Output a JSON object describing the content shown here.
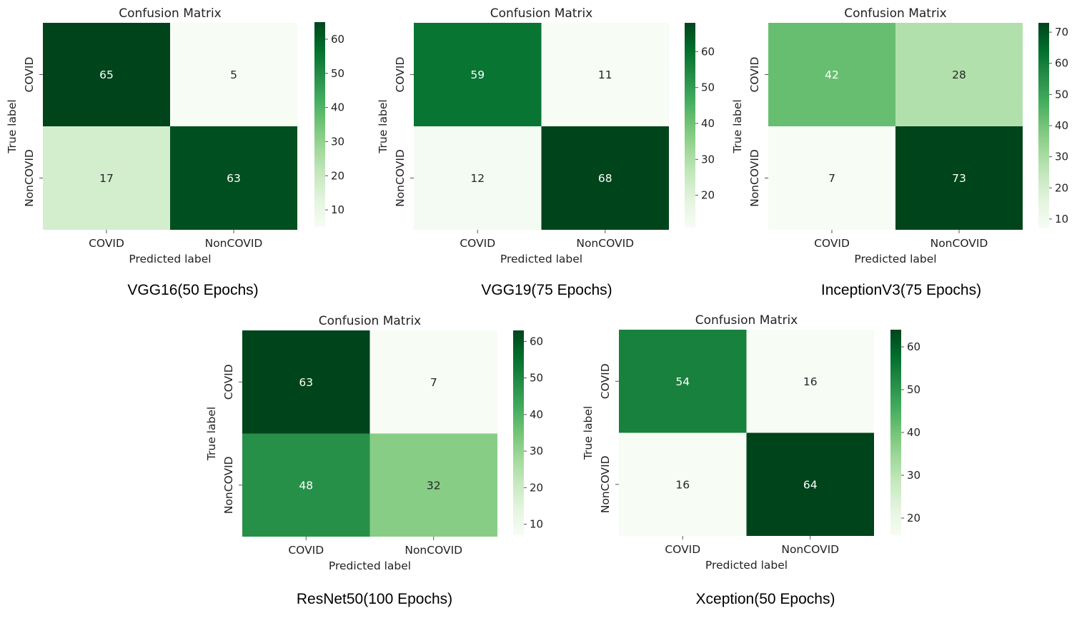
{
  "chart_data": [
    {
      "type": "heatmap",
      "title": "Confusion Matrix",
      "caption": "VGG16(50 Epochs)",
      "xlabel": "Predicted label",
      "ylabel": "True label",
      "x_categories": [
        "COVID",
        "NonCOVID"
      ],
      "y_categories": [
        "COVID",
        "NonCOVID"
      ],
      "values": [
        [
          65,
          5
        ],
        [
          17,
          63
        ]
      ],
      "colorbar": {
        "ticks": [
          10,
          20,
          30,
          40,
          50,
          60
        ],
        "range": [
          5,
          65
        ]
      }
    },
    {
      "type": "heatmap",
      "title": "Confusion Matrix",
      "caption": "VGG19(75 Epochs)",
      "xlabel": "Predicted label",
      "ylabel": "True label",
      "x_categories": [
        "COVID",
        "NonCOVID"
      ],
      "y_categories": [
        "COVID",
        "NonCOVID"
      ],
      "values": [
        [
          59,
          11
        ],
        [
          12,
          68
        ]
      ],
      "colorbar": {
        "ticks": [
          20,
          30,
          40,
          50,
          60
        ],
        "range": [
          11,
          68
        ]
      }
    },
    {
      "type": "heatmap",
      "title": "Confusion Matrix",
      "caption": "InceptionV3(75 Epochs)",
      "xlabel": "Predicted label",
      "ylabel": "True label",
      "x_categories": [
        "COVID",
        "NonCOVID"
      ],
      "y_categories": [
        "COVID",
        "NonCOVID"
      ],
      "values": [
        [
          42,
          28
        ],
        [
          7,
          73
        ]
      ],
      "colorbar": {
        "ticks": [
          10,
          20,
          30,
          40,
          50,
          60,
          70
        ],
        "range": [
          7,
          73
        ]
      }
    },
    {
      "type": "heatmap",
      "title": "Confusion Matrix",
      "caption": "ResNet50(100 Epochs)",
      "xlabel": "Predicted label",
      "ylabel": "True label",
      "x_categories": [
        "COVID",
        "NonCOVID"
      ],
      "y_categories": [
        "COVID",
        "NonCOVID"
      ],
      "values": [
        [
          63,
          7
        ],
        [
          48,
          32
        ]
      ],
      "colorbar": {
        "ticks": [
          10,
          20,
          30,
          40,
          50,
          60
        ],
        "range": [
          7,
          63
        ]
      }
    },
    {
      "type": "heatmap",
      "title": "Confusion Matrix",
      "caption": "Xception(50 Epochs)",
      "xlabel": "Predicted label",
      "ylabel": "True label",
      "x_categories": [
        "COVID",
        "NonCOVID"
      ],
      "y_categories": [
        "COVID",
        "NonCOVID"
      ],
      "values": [
        [
          54,
          16
        ],
        [
          16,
          64
        ]
      ],
      "colorbar": {
        "ticks": [
          20,
          30,
          40,
          50,
          60
        ],
        "range": [
          16,
          64
        ]
      }
    }
  ],
  "colormap": {
    "name": "Greens",
    "low": "#f7fcf5",
    "high": "#00441b"
  }
}
